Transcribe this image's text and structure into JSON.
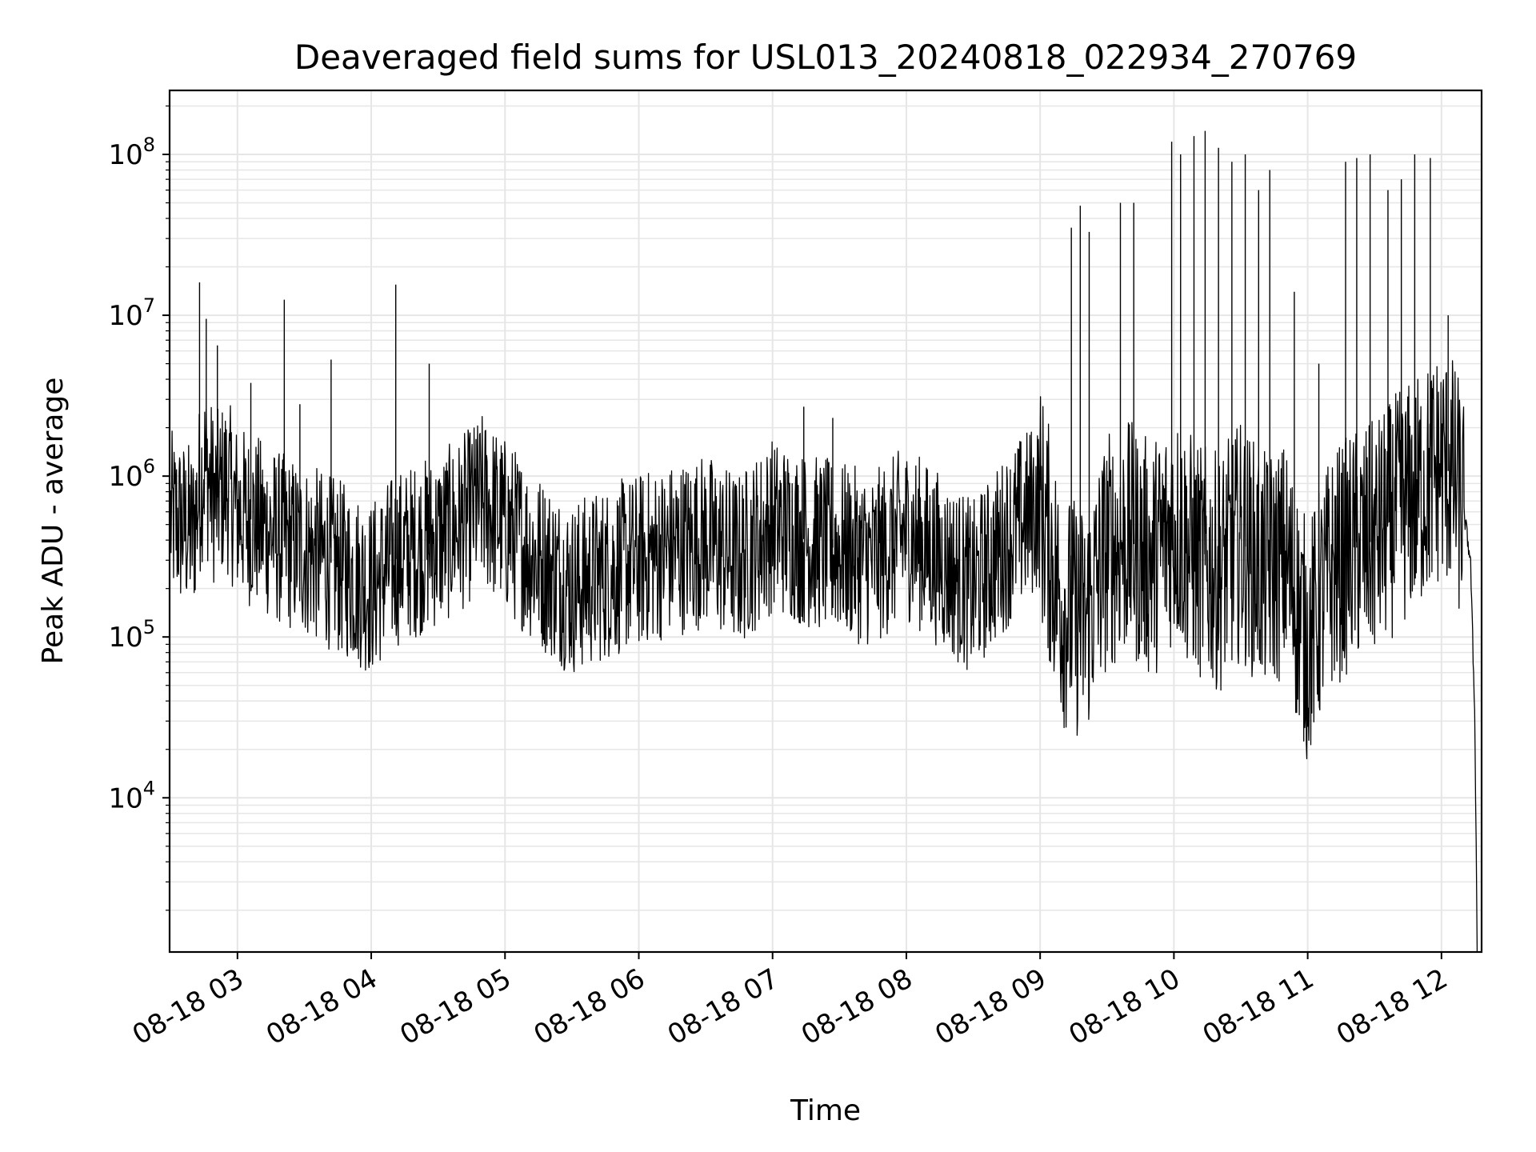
{
  "chart_data": {
    "type": "line",
    "title": "Deaveraged field sums for USL013_20240818_022934_270769",
    "xlabel": "Time",
    "ylabel": "Peak ADU - average",
    "yscale": "log",
    "ylim": [
      1100,
      250000000
    ],
    "xlim": [
      "2024-08-18 02:29:34",
      "2024-08-18 12:18:00"
    ],
    "grid": true,
    "line_color": "#000000",
    "x_ticks": [
      {
        "label": "08-18 03",
        "time": "2024-08-18 03:00"
      },
      {
        "label": "08-18 04",
        "time": "2024-08-18 04:00"
      },
      {
        "label": "08-18 05",
        "time": "2024-08-18 05:00"
      },
      {
        "label": "08-18 06",
        "time": "2024-08-18 06:00"
      },
      {
        "label": "08-18 07",
        "time": "2024-08-18 07:00"
      },
      {
        "label": "08-18 08",
        "time": "2024-08-18 08:00"
      },
      {
        "label": "08-18 09",
        "time": "2024-08-18 09:00"
      },
      {
        "label": "08-18 10",
        "time": "2024-08-18 10:00"
      },
      {
        "label": "08-18 11",
        "time": "2024-08-18 11:00"
      },
      {
        "label": "08-18 12",
        "time": "2024-08-18 12:00"
      }
    ],
    "y_ticks": [
      {
        "base": "10",
        "exp": "4",
        "value": 10000
      },
      {
        "base": "10",
        "exp": "5",
        "value": 100000
      },
      {
        "base": "10",
        "exp": "6",
        "value": 1000000
      },
      {
        "base": "10",
        "exp": "7",
        "value": 10000000
      },
      {
        "base": "10",
        "exp": "8",
        "value": 100000000
      }
    ],
    "series": [
      {
        "values_note_free": true,
        "x": [
          "2024-08-18 02:30",
          "2024-08-18 02:40",
          "2024-08-18 02:45",
          "2024-08-18 02:50",
          "2024-08-18 02:55",
          "2024-08-18 03:00",
          "2024-08-18 03:10",
          "2024-08-18 03:20",
          "2024-08-18 03:30",
          "2024-08-18 03:40",
          "2024-08-18 03:50",
          "2024-08-18 04:00",
          "2024-08-18 04:10",
          "2024-08-18 04:20",
          "2024-08-18 04:30",
          "2024-08-18 04:40",
          "2024-08-18 04:50",
          "2024-08-18 05:00",
          "2024-08-18 05:15",
          "2024-08-18 05:30",
          "2024-08-18 05:45",
          "2024-08-18 06:00",
          "2024-08-18 06:15",
          "2024-08-18 06:30",
          "2024-08-18 06:45",
          "2024-08-18 07:00",
          "2024-08-18 07:15",
          "2024-08-18 07:30",
          "2024-08-18 07:45",
          "2024-08-18 08:00",
          "2024-08-18 08:15",
          "2024-08-18 08:30",
          "2024-08-18 08:45",
          "2024-08-18 09:00",
          "2024-08-18 09:10",
          "2024-08-18 09:20",
          "2024-08-18 09:30",
          "2024-08-18 09:40",
          "2024-08-18 09:50",
          "2024-08-18 10:00",
          "2024-08-18 10:10",
          "2024-08-18 10:20",
          "2024-08-18 10:30",
          "2024-08-18 10:40",
          "2024-08-18 10:50",
          "2024-08-18 11:00",
          "2024-08-18 11:10",
          "2024-08-18 11:20",
          "2024-08-18 11:30",
          "2024-08-18 11:40",
          "2024-08-18 11:50",
          "2024-08-18 12:00",
          "2024-08-18 12:05",
          "2024-08-18 12:10",
          "2024-08-18 12:13",
          "2024-08-18 12:15",
          "2024-08-18 12:16"
        ],
        "y": [
          550000,
          450000,
          1200000,
          700000,
          900000,
          600000,
          500000,
          400000,
          350000,
          300000,
          250000,
          200000,
          300000,
          350000,
          400000,
          500000,
          700000,
          500000,
          300000,
          200000,
          250000,
          300000,
          350000,
          400000,
          300000,
          500000,
          400000,
          350000,
          300000,
          450000,
          300000,
          200000,
          400000,
          700000,
          150000,
          120000,
          350000,
          400000,
          300000,
          500000,
          300000,
          250000,
          400000,
          250000,
          300000,
          90000,
          250000,
          350000,
          400000,
          600000,
          800000,
          1200000,
          1000000,
          600000,
          300000,
          30000,
          1200
        ]
      }
    ],
    "spikes": [
      {
        "time": "2024-08-18 02:43",
        "peak": 16000000
      },
      {
        "time": "2024-08-18 02:46",
        "peak": 9500000
      },
      {
        "time": "2024-08-18 02:51",
        "peak": 6500000
      },
      {
        "time": "2024-08-18 03:06",
        "peak": 3800000
      },
      {
        "time": "2024-08-18 03:21",
        "peak": 12500000
      },
      {
        "time": "2024-08-18 03:28",
        "peak": 2800000
      },
      {
        "time": "2024-08-18 03:42",
        "peak": 5300000
      },
      {
        "time": "2024-08-18 04:11",
        "peak": 15500000
      },
      {
        "time": "2024-08-18 04:26",
        "peak": 5000000
      },
      {
        "time": "2024-08-18 04:47",
        "peak": 1700000
      },
      {
        "time": "2024-08-18 07:14",
        "peak": 2700000
      },
      {
        "time": "2024-08-18 07:27",
        "peak": 2300000
      },
      {
        "time": "2024-08-18 09:14",
        "peak": 35000000
      },
      {
        "time": "2024-08-18 09:18",
        "peak": 48000000
      },
      {
        "time": "2024-08-18 09:22",
        "peak": 33000000
      },
      {
        "time": "2024-08-18 09:36",
        "peak": 50000000
      },
      {
        "time": "2024-08-18 09:42",
        "peak": 50000000
      },
      {
        "time": "2024-08-18 09:59",
        "peak": 120000000
      },
      {
        "time": "2024-08-18 10:03",
        "peak": 100000000
      },
      {
        "time": "2024-08-18 10:09",
        "peak": 130000000
      },
      {
        "time": "2024-08-18 10:14",
        "peak": 140000000
      },
      {
        "time": "2024-08-18 10:20",
        "peak": 110000000
      },
      {
        "time": "2024-08-18 10:26",
        "peak": 90000000
      },
      {
        "time": "2024-08-18 10:32",
        "peak": 100000000
      },
      {
        "time": "2024-08-18 10:38",
        "peak": 60000000
      },
      {
        "time": "2024-08-18 10:43",
        "peak": 80000000
      },
      {
        "time": "2024-08-18 10:54",
        "peak": 14000000
      },
      {
        "time": "2024-08-18 11:05",
        "peak": 5000000
      },
      {
        "time": "2024-08-18 11:17",
        "peak": 90000000
      },
      {
        "time": "2024-08-18 11:22",
        "peak": 95000000
      },
      {
        "time": "2024-08-18 11:28",
        "peak": 100000000
      },
      {
        "time": "2024-08-18 11:36",
        "peak": 60000000
      },
      {
        "time": "2024-08-18 11:42",
        "peak": 70000000
      },
      {
        "time": "2024-08-18 11:48",
        "peak": 100000000
      },
      {
        "time": "2024-08-18 11:55",
        "peak": 95000000
      },
      {
        "time": "2024-08-18 12:03",
        "peak": 10000000
      }
    ]
  }
}
